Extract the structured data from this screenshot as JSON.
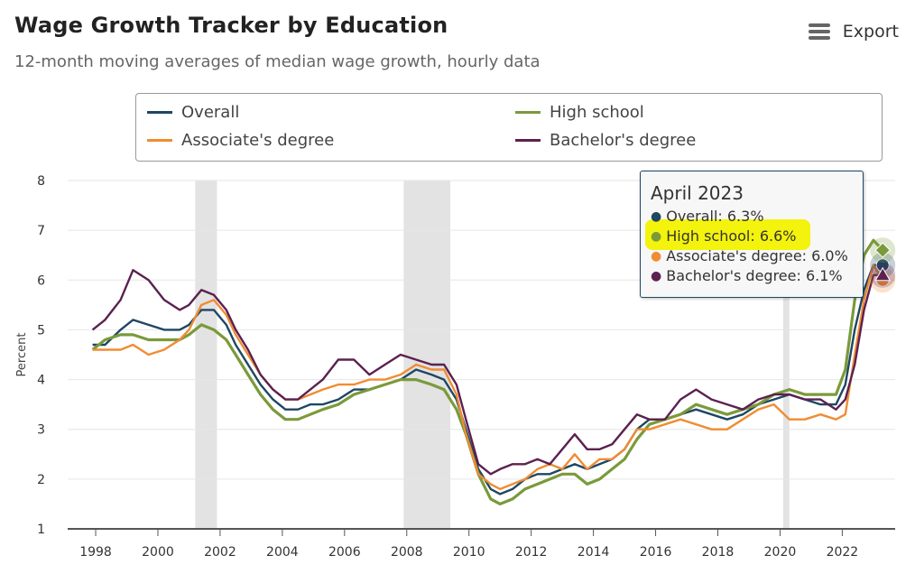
{
  "title": "Wage Growth Tracker by Education",
  "subtitle": "12-month moving averages of median wage growth, hourly data",
  "export_label": "Export",
  "chart_data": {
    "type": "line",
    "ylabel": "Percent",
    "xlabel": "",
    "ylim": [
      1,
      8
    ],
    "xlim": [
      1997.1,
      2023.7
    ],
    "yticks": [
      "1",
      "2",
      "3",
      "4",
      "5",
      "6",
      "7",
      "8"
    ],
    "xticks": [
      "1998",
      "2000",
      "2002",
      "2004",
      "2006",
      "2008",
      "2010",
      "2012",
      "2014",
      "2016",
      "2018",
      "2020",
      "2022"
    ],
    "grid": true,
    "legend_position": "top",
    "recessions": [
      [
        2001.2,
        2001.9
      ],
      [
        2007.9,
        2009.4
      ],
      [
        2020.1,
        2020.3
      ]
    ],
    "series": [
      {
        "name": "Overall",
        "color": "#1d4763",
        "points": [
          [
            1997.9,
            4.7
          ],
          [
            1998.3,
            4.7
          ],
          [
            1998.8,
            5.0
          ],
          [
            1999.2,
            5.2
          ],
          [
            1999.7,
            5.1
          ],
          [
            2000.2,
            5.0
          ],
          [
            2000.7,
            5.0
          ],
          [
            2001.0,
            5.1
          ],
          [
            2001.4,
            5.4
          ],
          [
            2001.8,
            5.4
          ],
          [
            2002.2,
            5.1
          ],
          [
            2002.5,
            4.7
          ],
          [
            2002.9,
            4.3
          ],
          [
            2003.3,
            3.9
          ],
          [
            2003.7,
            3.6
          ],
          [
            2004.1,
            3.4
          ],
          [
            2004.5,
            3.4
          ],
          [
            2004.9,
            3.5
          ],
          [
            2005.3,
            3.5
          ],
          [
            2005.8,
            3.6
          ],
          [
            2006.3,
            3.8
          ],
          [
            2006.8,
            3.8
          ],
          [
            2007.3,
            3.9
          ],
          [
            2007.8,
            4.0
          ],
          [
            2008.3,
            4.2
          ],
          [
            2008.8,
            4.1
          ],
          [
            2009.2,
            4.0
          ],
          [
            2009.6,
            3.6
          ],
          [
            2009.9,
            3.0
          ],
          [
            2010.3,
            2.2
          ],
          [
            2010.7,
            1.8
          ],
          [
            2011.0,
            1.7
          ],
          [
            2011.4,
            1.8
          ],
          [
            2011.8,
            2.0
          ],
          [
            2012.2,
            2.1
          ],
          [
            2012.6,
            2.1
          ],
          [
            2013.0,
            2.2
          ],
          [
            2013.4,
            2.3
          ],
          [
            2013.8,
            2.2
          ],
          [
            2014.2,
            2.3
          ],
          [
            2014.6,
            2.4
          ],
          [
            2015.0,
            2.6
          ],
          [
            2015.4,
            3.0
          ],
          [
            2015.8,
            3.2
          ],
          [
            2016.3,
            3.2
          ],
          [
            2016.8,
            3.3
          ],
          [
            2017.3,
            3.4
          ],
          [
            2017.8,
            3.3
          ],
          [
            2018.3,
            3.2
          ],
          [
            2018.8,
            3.3
          ],
          [
            2019.3,
            3.5
          ],
          [
            2019.8,
            3.6
          ],
          [
            2020.3,
            3.7
          ],
          [
            2020.8,
            3.6
          ],
          [
            2021.3,
            3.5
          ],
          [
            2021.8,
            3.5
          ],
          [
            2022.1,
            3.9
          ],
          [
            2022.4,
            5.0
          ],
          [
            2022.7,
            5.8
          ],
          [
            2023.0,
            6.3
          ],
          [
            2023.3,
            6.3
          ]
        ]
      },
      {
        "name": "High school",
        "color": "#7a9a3a",
        "points": [
          [
            1997.9,
            4.6
          ],
          [
            1998.3,
            4.8
          ],
          [
            1998.8,
            4.9
          ],
          [
            1999.2,
            4.9
          ],
          [
            1999.7,
            4.8
          ],
          [
            2000.2,
            4.8
          ],
          [
            2000.7,
            4.8
          ],
          [
            2001.0,
            4.9
          ],
          [
            2001.4,
            5.1
          ],
          [
            2001.8,
            5.0
          ],
          [
            2002.2,
            4.8
          ],
          [
            2002.5,
            4.5
          ],
          [
            2002.9,
            4.1
          ],
          [
            2003.3,
            3.7
          ],
          [
            2003.7,
            3.4
          ],
          [
            2004.1,
            3.2
          ],
          [
            2004.5,
            3.2
          ],
          [
            2004.9,
            3.3
          ],
          [
            2005.3,
            3.4
          ],
          [
            2005.8,
            3.5
          ],
          [
            2006.3,
            3.7
          ],
          [
            2006.8,
            3.8
          ],
          [
            2007.3,
            3.9
          ],
          [
            2007.8,
            4.0
          ],
          [
            2008.3,
            4.0
          ],
          [
            2008.8,
            3.9
          ],
          [
            2009.2,
            3.8
          ],
          [
            2009.6,
            3.4
          ],
          [
            2009.9,
            2.9
          ],
          [
            2010.3,
            2.1
          ],
          [
            2010.7,
            1.6
          ],
          [
            2011.0,
            1.5
          ],
          [
            2011.4,
            1.6
          ],
          [
            2011.8,
            1.8
          ],
          [
            2012.2,
            1.9
          ],
          [
            2012.6,
            2.0
          ],
          [
            2013.0,
            2.1
          ],
          [
            2013.4,
            2.1
          ],
          [
            2013.8,
            1.9
          ],
          [
            2014.2,
            2.0
          ],
          [
            2014.6,
            2.2
          ],
          [
            2015.0,
            2.4
          ],
          [
            2015.4,
            2.8
          ],
          [
            2015.8,
            3.1
          ],
          [
            2016.3,
            3.2
          ],
          [
            2016.8,
            3.3
          ],
          [
            2017.3,
            3.5
          ],
          [
            2017.8,
            3.4
          ],
          [
            2018.3,
            3.3
          ],
          [
            2018.8,
            3.4
          ],
          [
            2019.3,
            3.5
          ],
          [
            2019.8,
            3.7
          ],
          [
            2020.3,
            3.8
          ],
          [
            2020.8,
            3.7
          ],
          [
            2021.3,
            3.7
          ],
          [
            2021.8,
            3.7
          ],
          [
            2022.1,
            4.2
          ],
          [
            2022.4,
            5.6
          ],
          [
            2022.7,
            6.5
          ],
          [
            2023.0,
            6.8
          ],
          [
            2023.3,
            6.6
          ]
        ]
      },
      {
        "name": "Associate's degree",
        "color": "#f08c33",
        "points": [
          [
            1997.9,
            4.6
          ],
          [
            1998.3,
            4.6
          ],
          [
            1998.8,
            4.6
          ],
          [
            1999.2,
            4.7
          ],
          [
            1999.7,
            4.5
          ],
          [
            2000.2,
            4.6
          ],
          [
            2000.7,
            4.8
          ],
          [
            2001.0,
            5.0
          ],
          [
            2001.4,
            5.5
          ],
          [
            2001.8,
            5.6
          ],
          [
            2002.2,
            5.3
          ],
          [
            2002.5,
            4.9
          ],
          [
            2002.9,
            4.5
          ],
          [
            2003.3,
            4.1
          ],
          [
            2003.7,
            3.8
          ],
          [
            2004.1,
            3.6
          ],
          [
            2004.5,
            3.6
          ],
          [
            2004.9,
            3.7
          ],
          [
            2005.3,
            3.8
          ],
          [
            2005.8,
            3.9
          ],
          [
            2006.3,
            3.9
          ],
          [
            2006.8,
            4.0
          ],
          [
            2007.3,
            4.0
          ],
          [
            2007.8,
            4.1
          ],
          [
            2008.3,
            4.3
          ],
          [
            2008.8,
            4.2
          ],
          [
            2009.2,
            4.2
          ],
          [
            2009.6,
            3.7
          ],
          [
            2009.9,
            2.9
          ],
          [
            2010.3,
            2.1
          ],
          [
            2010.7,
            1.9
          ],
          [
            2011.0,
            1.8
          ],
          [
            2011.4,
            1.9
          ],
          [
            2011.8,
            2.0
          ],
          [
            2012.2,
            2.2
          ],
          [
            2012.6,
            2.3
          ],
          [
            2013.0,
            2.2
          ],
          [
            2013.4,
            2.5
          ],
          [
            2013.8,
            2.2
          ],
          [
            2014.2,
            2.4
          ],
          [
            2014.6,
            2.4
          ],
          [
            2015.0,
            2.6
          ],
          [
            2015.4,
            3.0
          ],
          [
            2015.8,
            3.0
          ],
          [
            2016.3,
            3.1
          ],
          [
            2016.8,
            3.2
          ],
          [
            2017.3,
            3.1
          ],
          [
            2017.8,
            3.0
          ],
          [
            2018.3,
            3.0
          ],
          [
            2018.8,
            3.2
          ],
          [
            2019.3,
            3.4
          ],
          [
            2019.8,
            3.5
          ],
          [
            2020.3,
            3.2
          ],
          [
            2020.8,
            3.2
          ],
          [
            2021.3,
            3.3
          ],
          [
            2021.8,
            3.2
          ],
          [
            2022.1,
            3.3
          ],
          [
            2022.4,
            4.5
          ],
          [
            2022.7,
            5.6
          ],
          [
            2023.0,
            6.3
          ],
          [
            2023.3,
            6.0
          ]
        ]
      },
      {
        "name": "Bachelor's degree",
        "color": "#5b2150",
        "points": [
          [
            1997.9,
            5.0
          ],
          [
            1998.3,
            5.2
          ],
          [
            1998.8,
            5.6
          ],
          [
            1999.2,
            6.2
          ],
          [
            1999.7,
            6.0
          ],
          [
            2000.2,
            5.6
          ],
          [
            2000.7,
            5.4
          ],
          [
            2001.0,
            5.5
          ],
          [
            2001.4,
            5.8
          ],
          [
            2001.8,
            5.7
          ],
          [
            2002.2,
            5.4
          ],
          [
            2002.5,
            5.0
          ],
          [
            2002.9,
            4.6
          ],
          [
            2003.3,
            4.1
          ],
          [
            2003.7,
            3.8
          ],
          [
            2004.1,
            3.6
          ],
          [
            2004.5,
            3.6
          ],
          [
            2004.9,
            3.8
          ],
          [
            2005.3,
            4.0
          ],
          [
            2005.8,
            4.4
          ],
          [
            2006.3,
            4.4
          ],
          [
            2006.8,
            4.1
          ],
          [
            2007.3,
            4.3
          ],
          [
            2007.8,
            4.5
          ],
          [
            2008.3,
            4.4
          ],
          [
            2008.8,
            4.3
          ],
          [
            2009.2,
            4.3
          ],
          [
            2009.6,
            3.9
          ],
          [
            2009.9,
            3.2
          ],
          [
            2010.3,
            2.3
          ],
          [
            2010.7,
            2.1
          ],
          [
            2011.0,
            2.2
          ],
          [
            2011.4,
            2.3
          ],
          [
            2011.8,
            2.3
          ],
          [
            2012.2,
            2.4
          ],
          [
            2012.6,
            2.3
          ],
          [
            2013.0,
            2.6
          ],
          [
            2013.4,
            2.9
          ],
          [
            2013.8,
            2.6
          ],
          [
            2014.2,
            2.6
          ],
          [
            2014.6,
            2.7
          ],
          [
            2015.0,
            3.0
          ],
          [
            2015.4,
            3.3
          ],
          [
            2015.8,
            3.2
          ],
          [
            2016.3,
            3.2
          ],
          [
            2016.8,
            3.6
          ],
          [
            2017.3,
            3.8
          ],
          [
            2017.8,
            3.6
          ],
          [
            2018.3,
            3.5
          ],
          [
            2018.8,
            3.4
          ],
          [
            2019.3,
            3.6
          ],
          [
            2019.8,
            3.7
          ],
          [
            2020.3,
            3.7
          ],
          [
            2020.8,
            3.6
          ],
          [
            2021.3,
            3.6
          ],
          [
            2021.8,
            3.4
          ],
          [
            2022.1,
            3.6
          ],
          [
            2022.4,
            4.3
          ],
          [
            2022.7,
            5.4
          ],
          [
            2023.0,
            6.1
          ],
          [
            2023.3,
            6.1
          ]
        ]
      }
    ],
    "tooltip": {
      "title": "April 2023",
      "rows": [
        {
          "label": "Overall: 6.3%",
          "color": "#1d4763"
        },
        {
          "label": "High school: 6.6%",
          "color": "#7a9a3a"
        },
        {
          "label": "Associate's degree: 6.0%",
          "color": "#f08c33"
        },
        {
          "label": "Bachelor's degree: 6.1%",
          "color": "#5b2150"
        }
      ]
    }
  }
}
